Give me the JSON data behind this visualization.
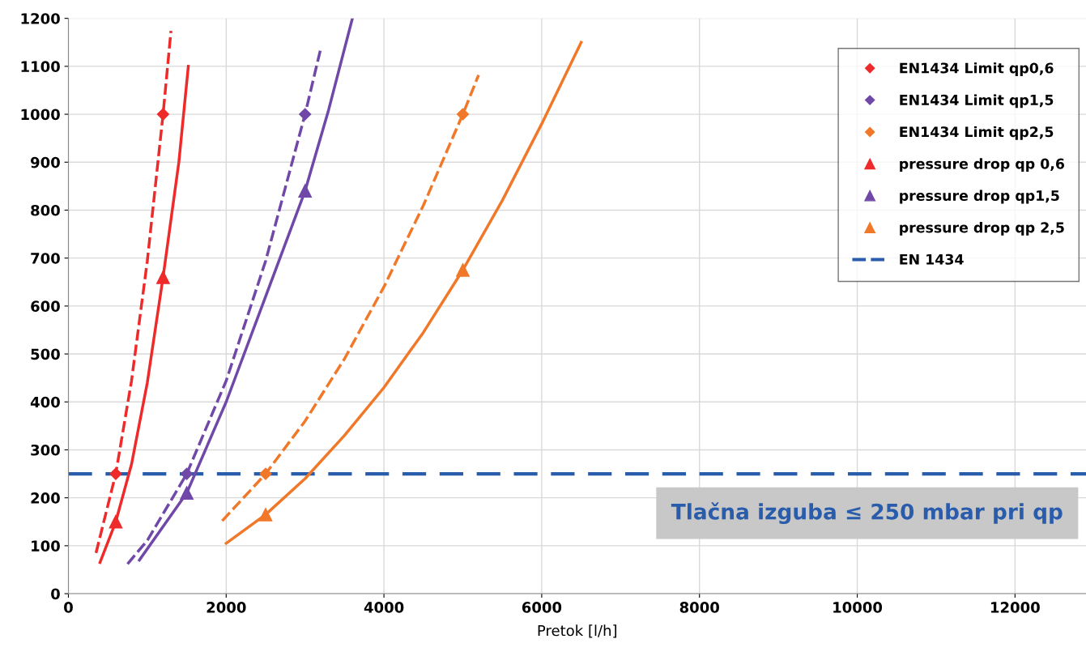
{
  "chart_data": {
    "type": "scatter",
    "xlabel": "Pretok [l/h]",
    "xlim": [
      0,
      12900
    ],
    "ylim": [
      0,
      1200
    ],
    "xticks": [
      0,
      2000,
      4000,
      6000,
      8000,
      10000,
      12000
    ],
    "yticks": [
      0,
      100,
      200,
      300,
      400,
      500,
      600,
      700,
      800,
      900,
      1000,
      1100,
      1200
    ],
    "grid": true,
    "legend": "top right",
    "series": [
      {
        "type": "line",
        "line_style": "dashed",
        "color": "#ee2a2a",
        "x": [
          350,
          600,
          800,
          1000,
          1200,
          1300
        ],
        "values": [
          85,
          250,
          444,
          694,
          1000,
          1174
        ]
      },
      {
        "type": "line",
        "line_style": "dashed",
        "color": "#7048a8",
        "x": [
          750,
          1000,
          1500,
          2000,
          2500,
          3000,
          3200
        ],
        "values": [
          62,
          111,
          250,
          444,
          694,
          1000,
          1138
        ]
      },
      {
        "type": "line",
        "line_style": "dashed",
        "color": "#f07828",
        "x": [
          1950,
          2500,
          3000,
          3500,
          4000,
          4500,
          5000,
          5200
        ],
        "values": [
          152,
          250,
          360,
          490,
          640,
          810,
          1000,
          1082
        ]
      },
      {
        "type": "line",
        "line_style": "solid",
        "color": "#ee2a2a",
        "x": [
          400,
          600,
          800,
          1000,
          1200,
          1400,
          1520
        ],
        "values": [
          65,
          150,
          270,
          440,
          660,
          900,
          1100
        ]
      },
      {
        "type": "line",
        "line_style": "solid",
        "color": "#7048a8",
        "x": [
          900,
          1500,
          2000,
          2500,
          3000,
          3300,
          3600
        ],
        "values": [
          70,
          210,
          400,
          620,
          840,
          1010,
          1200
        ]
      },
      {
        "type": "line",
        "line_style": "solid",
        "color": "#f07828",
        "x": [
          2000,
          2500,
          3000,
          3500,
          4000,
          4500,
          5000,
          5500,
          6000,
          6500
        ],
        "values": [
          105,
          165,
          240,
          330,
          430,
          545,
          675,
          820,
          980,
          1150
        ]
      },
      {
        "name": "EN1434 Limit qp0,6",
        "marker": "diamond",
        "color": "#ee2a2a",
        "x": [
          600,
          1200
        ],
        "values": [
          250,
          1000
        ]
      },
      {
        "name": "EN1434 Limit qp1,5",
        "marker": "diamond",
        "color": "#7048a8",
        "x": [
          1500,
          3000
        ],
        "values": [
          250,
          1000
        ]
      },
      {
        "name": "EN1434 Limit qp2,5",
        "marker": "diamond",
        "color": "#f07828",
        "x": [
          2500,
          5000
        ],
        "values": [
          250,
          1000
        ]
      },
      {
        "name": "pressure drop qp 0,6",
        "marker": "triangle",
        "color": "#ee2a2a",
        "x": [
          600,
          1200
        ],
        "values": [
          150,
          660
        ]
      },
      {
        "name": "pressure drop qp1,5",
        "marker": "triangle",
        "color": "#7048a8",
        "x": [
          1500,
          3000
        ],
        "values": [
          210,
          840
        ]
      },
      {
        "name": "pressure drop qp 2,5",
        "marker": "triangle",
        "color": "#f07828",
        "x": [
          2500,
          5000
        ],
        "values": [
          165,
          675
        ]
      }
    ],
    "ref_lines": [
      {
        "axis": "y",
        "value": 250,
        "label": "EN 1434",
        "color": "#2a5cac",
        "line_style": "dashed"
      }
    ],
    "annotations": [
      "Tlačna izguba ≤ 250 mbar pri qp"
    ]
  }
}
